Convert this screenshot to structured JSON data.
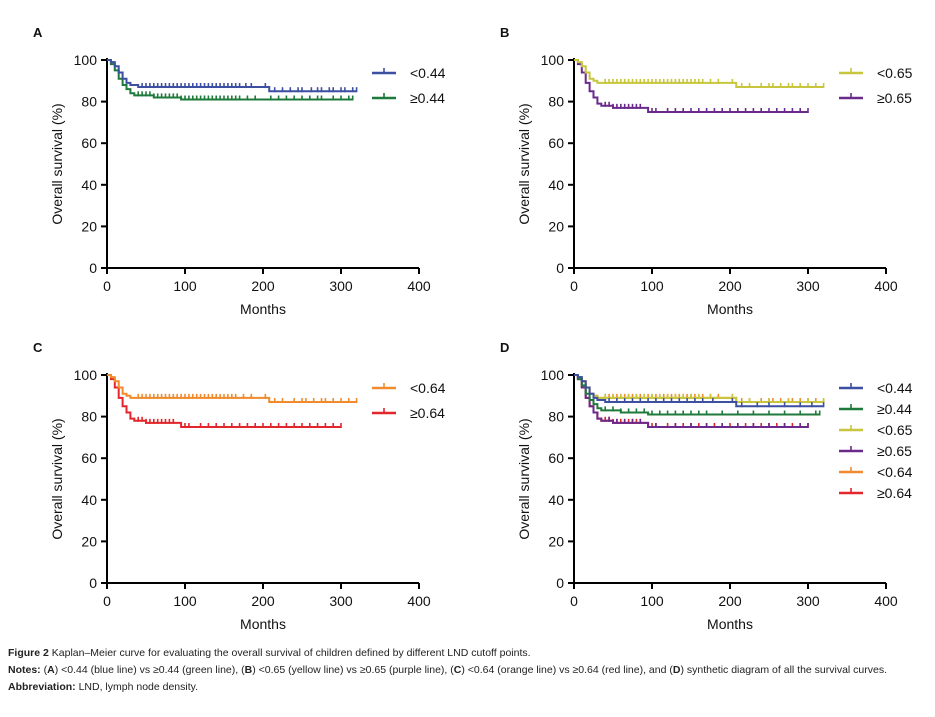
{
  "chart_data": [
    {
      "panel": "A",
      "type": "line",
      "subtype": "kaplan-meier",
      "xlabel": "Months",
      "ylabel": "Overall survival (%)",
      "xlim": [
        0,
        400
      ],
      "ylim": [
        0,
        100
      ],
      "xticks": [
        0,
        100,
        200,
        300,
        400
      ],
      "yticks": [
        0,
        20,
        40,
        60,
        80,
        100
      ],
      "legend_position": "top-right",
      "series": [
        {
          "name": "<0.44",
          "color": "#3d4fa1",
          "x": [
            0,
            5,
            10,
            15,
            20,
            25,
            30,
            35,
            40,
            205,
            208,
            320
          ],
          "y": [
            100,
            99,
            97,
            94,
            91,
            89,
            88,
            88,
            87,
            87,
            85,
            85
          ],
          "censor_x": [
            45,
            50,
            55,
            60,
            65,
            70,
            75,
            80,
            85,
            90,
            95,
            100,
            105,
            110,
            115,
            120,
            125,
            130,
            135,
            140,
            145,
            150,
            155,
            160,
            165,
            170,
            178,
            185,
            203,
            215,
            225,
            235,
            245,
            250,
            262,
            270,
            275,
            285,
            290,
            300,
            305,
            315,
            320
          ]
        },
        {
          "name": "≥0.44",
          "color": "#1e7a3a",
          "x": [
            0,
            5,
            10,
            15,
            20,
            25,
            30,
            35,
            60,
            95,
            315
          ],
          "y": [
            100,
            98,
            95,
            91,
            88,
            86,
            84,
            83,
            82,
            81,
            81
          ],
          "censor_x": [
            40,
            45,
            50,
            55,
            60,
            65,
            70,
            75,
            80,
            85,
            90,
            95,
            100,
            105,
            110,
            115,
            120,
            125,
            130,
            135,
            140,
            145,
            150,
            155,
            160,
            165,
            170,
            180,
            190,
            210,
            220,
            230,
            240,
            250,
            260,
            270,
            275,
            290,
            300,
            310,
            315
          ]
        }
      ]
    },
    {
      "panel": "B",
      "type": "line",
      "subtype": "kaplan-meier",
      "xlabel": "Months",
      "ylabel": "Overall survival (%)",
      "xlim": [
        0,
        400
      ],
      "ylim": [
        0,
        100
      ],
      "xticks": [
        0,
        100,
        200,
        300,
        400
      ],
      "yticks": [
        0,
        20,
        40,
        60,
        80,
        100
      ],
      "legend_position": "top-right",
      "series": [
        {
          "name": "<0.65",
          "color": "#c8c63c",
          "x": [
            0,
            5,
            10,
            15,
            20,
            25,
            30,
            35,
            205,
            208,
            320
          ],
          "y": [
            100,
            99,
            97,
            94,
            91,
            90,
            89,
            89,
            89,
            87,
            87
          ],
          "censor_x": [
            40,
            45,
            50,
            55,
            60,
            65,
            70,
            75,
            80,
            85,
            90,
            95,
            100,
            105,
            110,
            115,
            120,
            125,
            130,
            135,
            140,
            145,
            150,
            155,
            160,
            165,
            175,
            185,
            203,
            215,
            225,
            240,
            250,
            255,
            265,
            275,
            280,
            290,
            300,
            310,
            320
          ]
        },
        {
          "name": "≥0.65",
          "color": "#6a2a8c",
          "x": [
            0,
            5,
            10,
            15,
            20,
            25,
            30,
            35,
            50,
            95,
            300
          ],
          "y": [
            100,
            98,
            94,
            89,
            85,
            82,
            79,
            78,
            77,
            75,
            75
          ],
          "censor_x": [
            40,
            45,
            50,
            55,
            60,
            65,
            70,
            75,
            80,
            85,
            100,
            105,
            120,
            130,
            140,
            150,
            160,
            170,
            180,
            190,
            200,
            210,
            220,
            230,
            240,
            250,
            260,
            270,
            280,
            290,
            300
          ]
        }
      ]
    },
    {
      "panel": "C",
      "type": "line",
      "subtype": "kaplan-meier",
      "xlabel": "Months",
      "ylabel": "Overall survival (%)",
      "xlim": [
        0,
        400
      ],
      "ylim": [
        0,
        100
      ],
      "xticks": [
        0,
        100,
        200,
        300,
        400
      ],
      "yticks": [
        0,
        20,
        40,
        60,
        80,
        100
      ],
      "legend_position": "top-right",
      "series": [
        {
          "name": "<0.64",
          "color": "#f08a2c",
          "x": [
            0,
            5,
            10,
            15,
            20,
            25,
            30,
            35,
            205,
            208,
            320
          ],
          "y": [
            100,
            99,
            97,
            94,
            91,
            90,
            89,
            89,
            89,
            87,
            87
          ],
          "censor_x": [
            40,
            45,
            50,
            55,
            60,
            65,
            70,
            75,
            80,
            85,
            90,
            95,
            100,
            105,
            110,
            115,
            120,
            125,
            130,
            135,
            140,
            145,
            150,
            155,
            160,
            165,
            175,
            185,
            203,
            215,
            225,
            240,
            250,
            255,
            265,
            275,
            280,
            290,
            300,
            310,
            320
          ]
        },
        {
          "name": "≥0.64",
          "color": "#e3262b",
          "x": [
            0,
            5,
            10,
            15,
            20,
            25,
            30,
            35,
            50,
            95,
            300
          ],
          "y": [
            100,
            98,
            94,
            89,
            85,
            82,
            79,
            78,
            77,
            75,
            75
          ],
          "censor_x": [
            40,
            45,
            50,
            55,
            60,
            65,
            70,
            75,
            80,
            85,
            100,
            105,
            120,
            130,
            140,
            150,
            160,
            170,
            180,
            190,
            200,
            210,
            220,
            230,
            240,
            250,
            260,
            270,
            280,
            290,
            300
          ]
        }
      ]
    },
    {
      "panel": "D",
      "type": "line",
      "subtype": "kaplan-meier",
      "xlabel": "Months",
      "ylabel": "Overall survival (%)",
      "xlim": [
        0,
        400
      ],
      "ylim": [
        0,
        100
      ],
      "xticks": [
        0,
        100,
        200,
        300,
        400
      ],
      "yticks": [
        0,
        20,
        40,
        60,
        80,
        100
      ],
      "legend_position": "top-right",
      "series": [
        {
          "name": "<0.44",
          "color": "#3d4fa1",
          "x": [
            0,
            5,
            10,
            15,
            20,
            25,
            30,
            35,
            40,
            205,
            208,
            320
          ],
          "y": [
            100,
            99,
            97,
            94,
            91,
            89,
            88,
            88,
            87,
            87,
            85,
            85
          ],
          "censor_x": [
            45,
            55,
            65,
            75,
            85,
            95,
            105,
            115,
            125,
            135,
            145,
            155,
            165,
            178,
            203,
            215,
            235,
            250,
            270,
            290,
            305,
            320
          ]
        },
        {
          "name": "≥0.44",
          "color": "#1e7a3a",
          "x": [
            0,
            5,
            10,
            15,
            20,
            25,
            30,
            35,
            60,
            95,
            315
          ],
          "y": [
            100,
            98,
            95,
            91,
            88,
            86,
            84,
            83,
            82,
            81,
            81
          ],
          "censor_x": [
            40,
            50,
            60,
            70,
            80,
            90,
            100,
            110,
            120,
            130,
            140,
            150,
            160,
            170,
            190,
            210,
            230,
            250,
            270,
            290,
            310,
            315
          ]
        },
        {
          "name": "<0.65",
          "color": "#c8c63c",
          "x": [
            0,
            5,
            10,
            15,
            20,
            25,
            30,
            35,
            205,
            208,
            320
          ],
          "y": [
            100,
            99,
            97,
            94,
            91,
            90,
            89,
            89,
            89,
            87,
            87
          ],
          "censor_x": [
            40,
            50,
            60,
            70,
            80,
            90,
            100,
            110,
            120,
            130,
            140,
            150,
            160,
            175,
            203,
            225,
            250,
            275,
            300,
            320
          ]
        },
        {
          "name": "≥0.65",
          "color": "#6a2a8c",
          "x": [
            0,
            5,
            10,
            15,
            20,
            25,
            30,
            35,
            50,
            95,
            300
          ],
          "y": [
            100,
            98,
            94,
            89,
            85,
            82,
            79,
            78,
            77,
            75,
            75
          ],
          "censor_x": [
            45,
            55,
            65,
            75,
            85,
            105,
            130,
            150,
            170,
            190,
            210,
            230,
            250,
            270,
            290,
            300
          ]
        },
        {
          "name": "<0.64",
          "color": "#f08a2c",
          "x": [
            0,
            5,
            10,
            15,
            20,
            25,
            30,
            35,
            205,
            208,
            320
          ],
          "y": [
            100,
            99,
            97,
            94,
            91,
            90,
            89,
            89,
            89,
            87,
            87
          ],
          "censor_x": [
            40,
            45,
            50,
            55,
            60,
            65,
            70,
            75,
            80,
            85,
            90,
            95,
            100,
            105,
            110,
            115,
            120,
            125,
            130,
            135,
            140,
            145,
            150,
            155,
            160,
            165,
            175,
            185,
            203,
            215,
            225,
            240,
            250,
            255,
            265,
            275,
            280,
            290,
            300,
            310,
            320
          ]
        },
        {
          "name": "≥0.64",
          "color": "#e3262b",
          "x": [
            0,
            5,
            10,
            15,
            20,
            25,
            30,
            35,
            50,
            95,
            300
          ],
          "y": [
            100,
            98,
            94,
            89,
            85,
            82,
            79,
            78,
            77,
            75,
            75
          ],
          "censor_x": [
            40,
            45,
            50,
            55,
            60,
            65,
            70,
            75,
            80,
            85,
            100,
            105,
            120,
            130,
            140,
            150,
            160,
            170,
            180,
            190,
            200,
            210,
            220,
            230,
            240,
            250,
            260,
            270,
            280,
            290,
            300
          ]
        }
      ]
    }
  ],
  "panels": {
    "A": {
      "letter": "A"
    },
    "B": {
      "letter": "B"
    },
    "C": {
      "letter": "C"
    },
    "D": {
      "letter": "D"
    }
  },
  "caption": {
    "figure_label": "Figure 2",
    "title": " Kaplan–Meier curve for evaluating the overall survival of children defined by different LND cutoff points.",
    "notes_label": "Notes:",
    "notes_parts": [
      " (",
      "A",
      ") <0.44 (blue line) vs ≥0.44 (green line), (",
      "B",
      ") <0.65 (yellow line) vs ≥0.65 (purple line), (",
      "C",
      ") <0.64 (orange line) vs ≥0.64 (red line), and (",
      "D",
      ") synthetic diagram of all the survival curves."
    ],
    "abbreviation_label": "Abbreviation:",
    "abbreviation_text": " LND, lymph node density."
  }
}
